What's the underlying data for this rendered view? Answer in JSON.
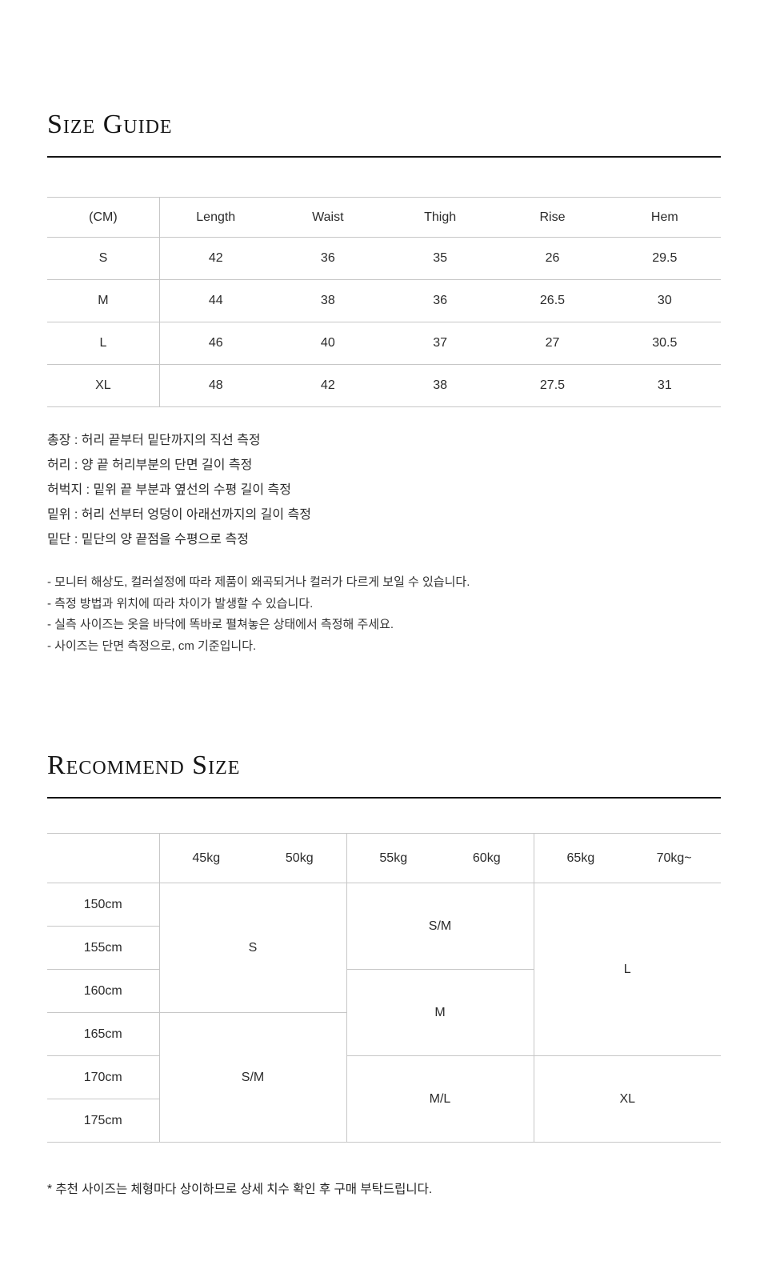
{
  "colors": {
    "rule": "#151515",
    "table_border": "#c7c7c7",
    "text": "#2b2b2b"
  },
  "sections": {
    "size_guide": {
      "title": "Size Guide"
    },
    "recommend": {
      "title": "Recommend Size"
    }
  },
  "size_table": {
    "unit_label": "(CM)",
    "columns": [
      "Length",
      "Waist",
      "Thigh",
      "Rise",
      "Hem"
    ],
    "rows": [
      {
        "size": "S",
        "values": [
          "42",
          "36",
          "35",
          "26",
          "29.5"
        ]
      },
      {
        "size": "M",
        "values": [
          "44",
          "38",
          "36",
          "26.5",
          "30"
        ]
      },
      {
        "size": "L",
        "values": [
          "46",
          "40",
          "37",
          "27",
          "30.5"
        ]
      },
      {
        "size": "XL",
        "values": [
          "48",
          "42",
          "38",
          "27.5",
          "31"
        ]
      }
    ]
  },
  "measure_definitions": [
    "총장 : 허리 끝부터 밑단까지의 직선 측정",
    "허리 : 양 끝 허리부분의 단면 길이 측정",
    "허벅지 : 밑위 끝 부분과 옆선의 수평 길이 측정",
    "밑위 : 허리 선부터 엉덩이 아래선까지의 길이 측정",
    "밑단 : 밑단의 양 끝점을 수평으로 측정"
  ],
  "notes": [
    "- 모니터 해상도, 컬러설정에 따라 제품이 왜곡되거나 컬러가 다르게 보일 수 있습니다.",
    "- 측정 방법과 위치에 따라 차이가 발생할 수 있습니다.",
    "- 실측 사이즈는 옷을 바닥에 똑바로 펼쳐놓은 상태에서 측정해 주세요.",
    "- 사이즈는 단면 측정으로, cm 기준입니다."
  ],
  "recommend_table": {
    "height_rows": [
      "150cm",
      "155cm",
      "160cm",
      "165cm",
      "170cm",
      "175cm"
    ],
    "groups": [
      {
        "weights": [
          "45kg",
          "50kg"
        ],
        "spans": [
          {
            "label": "S"
          },
          {
            "label": "S/M"
          }
        ]
      },
      {
        "weights": [
          "55kg",
          "60kg"
        ],
        "spans": [
          {
            "label": "S/M"
          },
          {
            "label": "M"
          },
          {
            "label": "M/L"
          }
        ]
      },
      {
        "weights": [
          "65kg",
          "70kg~"
        ],
        "spans": [
          {
            "label": "L"
          },
          {
            "label": "XL"
          }
        ]
      }
    ]
  },
  "footnote": "* 추천 사이즈는 체형마다 상이하므로 상세 치수 확인 후 구매 부탁드립니다."
}
